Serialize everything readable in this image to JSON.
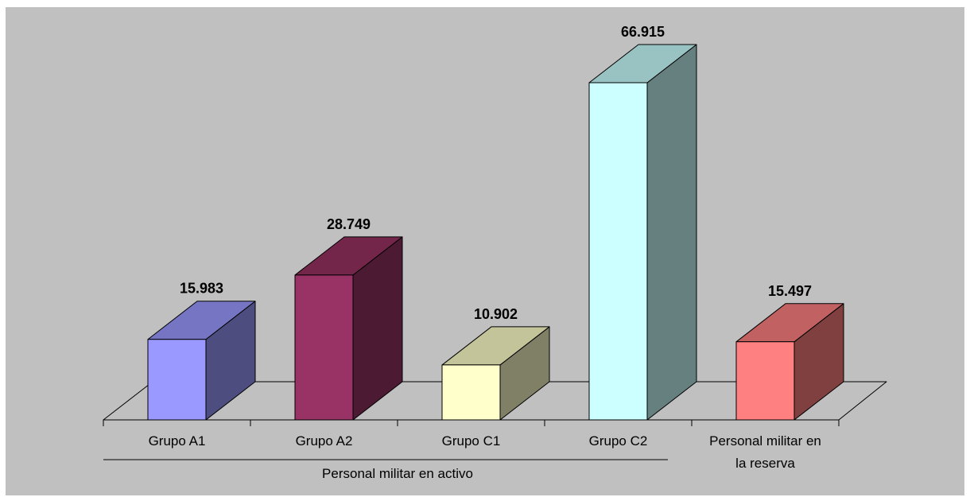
{
  "chart_data": {
    "type": "bar",
    "categories": [
      "Grupo A1",
      "Grupo A2",
      "Grupo C1",
      "Grupo C2",
      "Personal militar en la reserva"
    ],
    "category_label_lines": [
      [
        "Grupo A1"
      ],
      [
        "Grupo A2"
      ],
      [
        "Grupo C1"
      ],
      [
        "Grupo C2"
      ],
      [
        "Personal militar en",
        "la reserva"
      ]
    ],
    "values": [
      15983,
      28749,
      10902,
      66915,
      15497
    ],
    "value_labels": [
      "15.983",
      "28.749",
      "10.902",
      "66.915",
      "15.497"
    ],
    "group_label": "Personal militar en activo",
    "ylim": [
      0,
      66915
    ],
    "grid": false,
    "legend": false,
    "colors": {
      "background": "#c0c0c0",
      "bars": [
        {
          "front": "#9999ff",
          "top": "#7575c4",
          "side": "#4d4d80"
        },
        {
          "front": "#993366",
          "top": "#732649",
          "side": "#4d1a33"
        },
        {
          "front": "#ffffcc",
          "top": "#c4c49b",
          "side": "#808066"
        },
        {
          "front": "#ccffff",
          "top": "#99c2c2",
          "side": "#668080"
        },
        {
          "front": "#ff8080",
          "top": "#c26161",
          "side": "#804040"
        }
      ]
    }
  }
}
